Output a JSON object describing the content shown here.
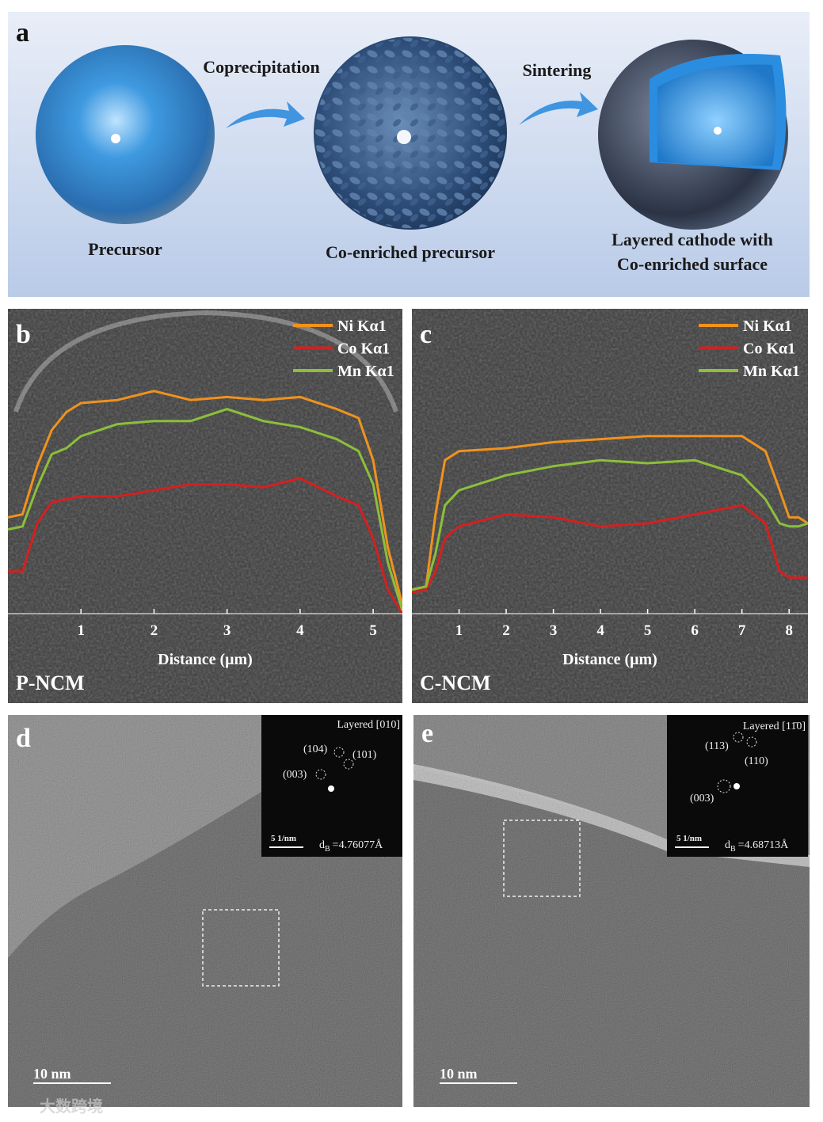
{
  "panels": {
    "a": {
      "label": "a",
      "arrows": [
        "Coprecipitation",
        "Sintering"
      ],
      "captions": [
        [
          "Precursor"
        ],
        [
          "Co-enriched precursor"
        ],
        [
          "Layered cathode with",
          "Co-enriched surface"
        ]
      ]
    },
    "d": {
      "label": "d",
      "zone": "Layered [010]",
      "spots": [
        "(104)",
        "(101)",
        "(003)"
      ],
      "fft_scale": "5 1/nm",
      "spacing": {
        "symbol": "d",
        "subscript": "B",
        "value": "=4.76077Å"
      },
      "scale_bar": "10 nm"
    },
    "e": {
      "label": "e",
      "zone": "Layered [11̄0]",
      "spots": [
        "(113)",
        "(110)",
        "(003)"
      ],
      "fft_scale": "5 1/nm",
      "spacing": {
        "symbol": "d",
        "subscript": "B",
        "value": "=4.68713Å"
      },
      "scale_bar": "10 nm"
    },
    "watermark": "大数跨境"
  },
  "chart_data": [
    {
      "type": "line",
      "panel_label": "b",
      "sample": "P-NCM",
      "x_label": "Distance (μm)",
      "x": [
        0,
        0.2,
        0.4,
        0.6,
        0.8,
        1,
        1.5,
        2,
        2.5,
        3,
        3.5,
        4,
        4.5,
        4.8,
        5,
        5.2,
        5.4
      ],
      "xlim": [
        0,
        5.4
      ],
      "xticks": [
        1,
        2,
        3,
        4,
        5
      ],
      "ylim": [
        0,
        100
      ],
      "series": [
        {
          "name": "Ni Kα1",
          "color": "#f0921e",
          "values": [
            32,
            33,
            49,
            61,
            67,
            70,
            71,
            74,
            71,
            72,
            71,
            72,
            68,
            65,
            51,
            22,
            3
          ]
        },
        {
          "name": "Co Kα1",
          "color": "#d42020",
          "values": [
            14,
            14,
            30,
            37,
            38,
            39,
            39,
            41,
            43,
            43,
            42,
            45,
            39,
            36,
            25,
            8,
            0
          ]
        },
        {
          "name": "Mn Kα1",
          "color": "#8cbf3a",
          "values": [
            28,
            29,
            42,
            53,
            55,
            59,
            63,
            64,
            64,
            68,
            64,
            62,
            58,
            54,
            43,
            17,
            1
          ]
        }
      ]
    },
    {
      "type": "line",
      "panel_label": "c",
      "sample": "C-NCM",
      "x_label": "Distance (μm)",
      "x": [
        0,
        0.3,
        0.5,
        0.7,
        1,
        2,
        3,
        4,
        5,
        6,
        7,
        7.5,
        7.8,
        8,
        8.2,
        8.4
      ],
      "xlim": [
        0,
        8.4
      ],
      "xticks": [
        1,
        2,
        3,
        4,
        5,
        6,
        7,
        8
      ],
      "ylim": [
        0,
        100
      ],
      "series": [
        {
          "name": "Ni Kα1",
          "color": "#f0921e",
          "values": [
            8,
            9,
            33,
            51,
            54,
            55,
            57,
            58,
            59,
            59,
            59,
            54,
            41,
            32,
            32,
            30
          ]
        },
        {
          "name": "Co Kα1",
          "color": "#d42020",
          "values": [
            7,
            8,
            14,
            25,
            29,
            33,
            32,
            29,
            30,
            33,
            36,
            30,
            14,
            12,
            12,
            12
          ]
        },
        {
          "name": "Mn Kα1",
          "color": "#8cbf3a",
          "values": [
            8,
            9,
            20,
            36,
            41,
            46,
            49,
            51,
            50,
            51,
            46,
            38,
            30,
            29,
            29,
            30
          ]
        }
      ]
    }
  ]
}
